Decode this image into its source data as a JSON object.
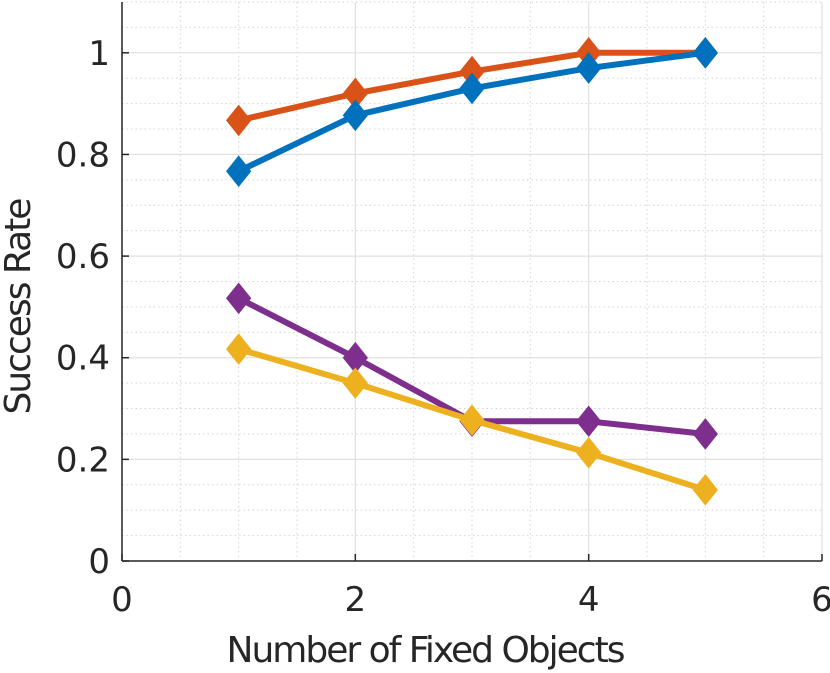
{
  "chart_data": {
    "type": "line",
    "xlabel": "Number of Fixed Objects",
    "ylabel": "Success Rate",
    "xlim": [
      0,
      6
    ],
    "ylim": [
      0,
      1.1
    ],
    "xticks": [
      0,
      2,
      4,
      6
    ],
    "xtick_labels": [
      "0",
      "2",
      "4",
      "6"
    ],
    "yticks": [
      0,
      0.2,
      0.4,
      0.6,
      0.8,
      1
    ],
    "ytick_labels": [
      "0",
      "0.2",
      "0.4",
      "0.6",
      "0.8",
      "1"
    ],
    "grid": true,
    "minor_grid": true,
    "legend": "none",
    "marker": "diamond",
    "x": [
      1,
      2,
      3,
      4,
      5
    ],
    "series": [
      {
        "color": "#D95319",
        "values": [
          0.867,
          0.92,
          0.963,
          1.0,
          1.0
        ]
      },
      {
        "color": "#0072BD",
        "values": [
          0.767,
          0.877,
          0.93,
          0.97,
          1.0
        ]
      },
      {
        "color": "#7E2F8E",
        "values": [
          0.517,
          0.4,
          0.275,
          0.275,
          0.25
        ]
      },
      {
        "color": "#EDB120",
        "values": [
          0.417,
          0.35,
          0.277,
          0.213,
          0.14
        ]
      }
    ]
  }
}
